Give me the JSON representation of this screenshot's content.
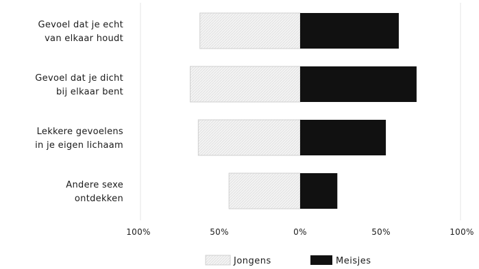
{
  "chart_data": {
    "type": "bar",
    "orientation": "horizontal-diverging",
    "categories": [
      [
        "Gevoel dat je echt",
        "van elkaar houdt"
      ],
      [
        "Gevoel dat je dicht",
        "bij elkaar bent"
      ],
      [
        "Lekkere gevoelens",
        "in je eigen lichaam"
      ],
      [
        "Andere sexe",
        "ontdekken"
      ]
    ],
    "series": [
      {
        "name": "Jongens",
        "values": [
          62,
          68,
          63,
          44
        ],
        "color": "#f2f2f2",
        "direction": "left"
      },
      {
        "name": "Meisjes",
        "values": [
          61,
          72,
          53,
          23
        ],
        "color": "#111111",
        "direction": "right"
      }
    ],
    "xlim": [
      -100,
      100
    ],
    "xticks": [
      {
        "value": -100,
        "label": "100%"
      },
      {
        "value": -50,
        "label": "50%"
      },
      {
        "value": 0,
        "label": "0%"
      },
      {
        "value": 50,
        "label": "50%"
      },
      {
        "value": 100,
        "label": "100%"
      }
    ],
    "legend_position": "bottom-center",
    "grid": false,
    "title": "",
    "xlabel": "",
    "ylabel": ""
  }
}
